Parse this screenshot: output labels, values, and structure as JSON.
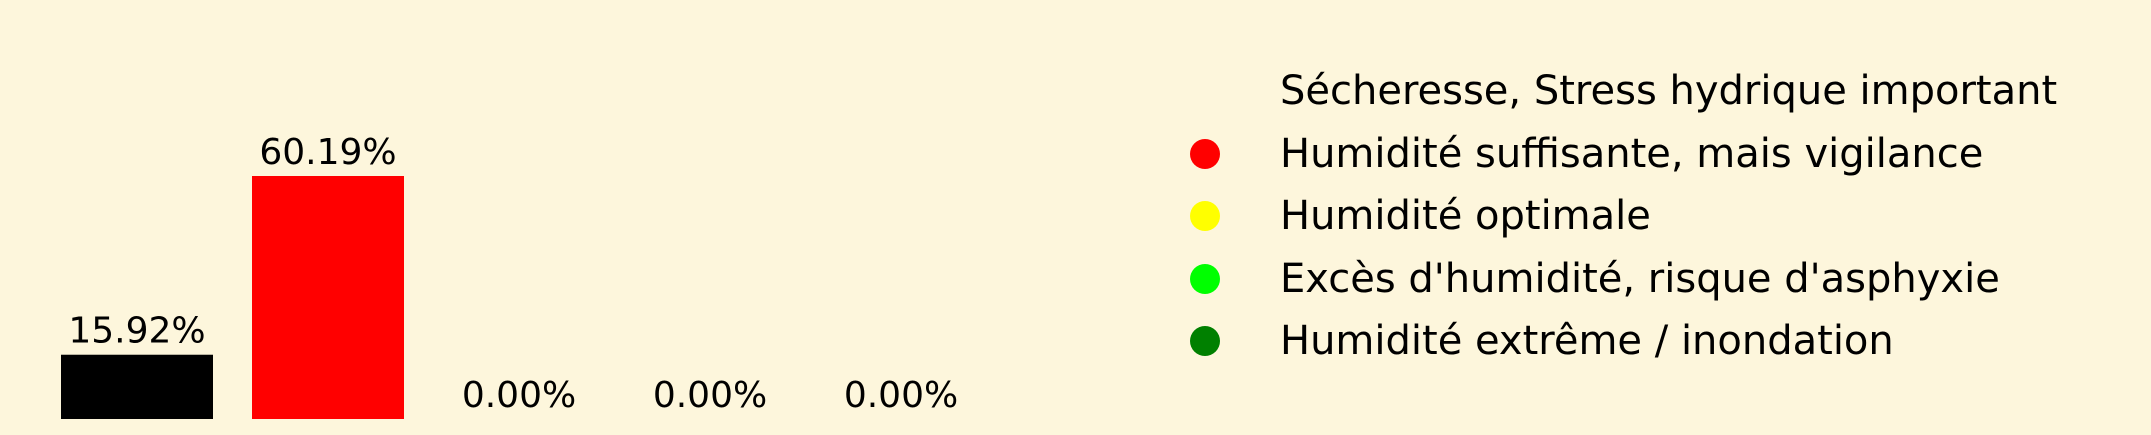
{
  "chart_data": {
    "type": "bar",
    "categories": [
      "Sécheresse, Stress hydrique important",
      "Humidité suffisante, mais vigilance",
      "Humidité optimale",
      "Excès d'humidité, risque d'asphyxie",
      "Humidité extrême / inondation"
    ],
    "values": [
      15.92,
      60.19,
      0.0,
      0.0,
      0.0
    ],
    "value_labels": [
      "15.92%",
      "60.19%",
      "0.00%",
      "0.00%",
      "0.00%"
    ],
    "colors": [
      "#000000",
      "#ff0000",
      "#ffff00",
      "#00ff00",
      "#008000"
    ],
    "ylim": [
      0,
      60.19
    ],
    "grid": false,
    "legend_placement": "right",
    "legend": [
      {
        "label": "Sécheresse, Stress hydrique important",
        "color": "#000000"
      },
      {
        "label": "Humidité suffisante, mais vigilance",
        "color": "#ff0000"
      },
      {
        "label": "Humidité optimale",
        "color": "#ffff00"
      },
      {
        "label": "Excès d'humidité, risque d'asphyxie",
        "color": "#00ff00"
      },
      {
        "label": "Humidité extrême / inondation",
        "color": "#008000"
      }
    ]
  }
}
